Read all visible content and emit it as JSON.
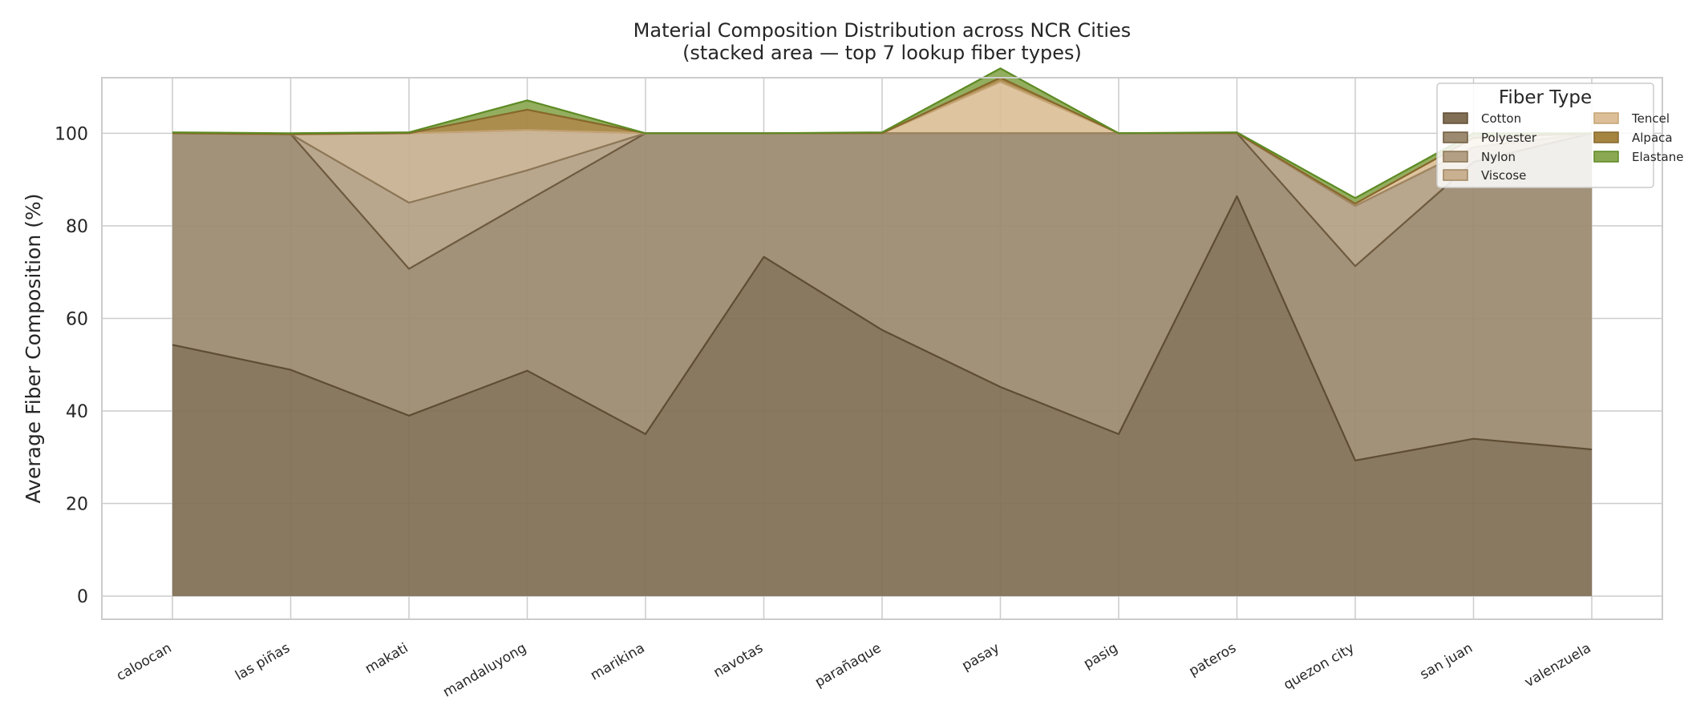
{
  "chart_data": {
    "type": "area",
    "stacked": true,
    "title_line1": "Material Composition Distribution across NCR Cities",
    "title_line2": "(stacked area — top 7 lookup fiber types)",
    "xlabel": "",
    "ylabel": "Average Fiber Composition (%)",
    "ylim": [
      -5,
      112
    ],
    "yticks": [
      0,
      20,
      40,
      60,
      80,
      100
    ],
    "grid": true,
    "legend_title": "Fiber Type",
    "legend_position": "top-right",
    "categories": [
      "caloocan",
      "las piñas",
      "makati",
      "mandaluyong",
      "marikina",
      "navotas",
      "parañaque",
      "pasay",
      "pasig",
      "pateros",
      "quezon city",
      "san juan",
      "valenzuela"
    ],
    "series": [
      {
        "name": "Cotton",
        "color": "#806f55",
        "line": "#5f4d33",
        "values": [
          54.3,
          48.9,
          39.0,
          48.7,
          35.0,
          73.3,
          57.5,
          45.2,
          35.0,
          86.4,
          29.3,
          34.0,
          31.7
        ]
      },
      {
        "name": "Polyester",
        "color": "#9b8a6f",
        "line": "#6e5a3e",
        "values": [
          45.7,
          50.9,
          31.7,
          36.7,
          65.0,
          26.7,
          42.5,
          54.8,
          65.0,
          13.6,
          42.0,
          59.8,
          68.3
        ]
      },
      {
        "name": "Nylon",
        "color": "#b39f84",
        "line": "#8c7656",
        "values": [
          0,
          0,
          14.3,
          6.6,
          0,
          0,
          0,
          0,
          0,
          0,
          13.0,
          3.2,
          0
        ]
      },
      {
        "name": "Viscose",
        "color": "#c8b091",
        "line": "#a08661",
        "values": [
          0,
          0,
          15.0,
          8.7,
          0,
          0,
          0,
          0,
          0,
          0,
          0,
          0,
          0
        ]
      },
      {
        "name": "Tencel",
        "color": "#dcbf98",
        "line": "#c4a373",
        "values": [
          0,
          0,
          0,
          0,
          0,
          0,
          0,
          11.1,
          0,
          0,
          0.5,
          2.0,
          0
        ]
      },
      {
        "name": "Alpaca",
        "color": "#a5843f",
        "line": "#87672a",
        "values": [
          0,
          0,
          0,
          4.4,
          0,
          0,
          0,
          0.9,
          0,
          0,
          0,
          0,
          0
        ]
      },
      {
        "name": "Elastane",
        "color": "#8aa852",
        "line": "#5d8a23",
        "values": [
          0.2,
          0.2,
          0.2,
          2.0,
          0,
          0,
          0.2,
          2.0,
          0,
          0.2,
          1.2,
          1.0,
          0
        ]
      }
    ]
  }
}
